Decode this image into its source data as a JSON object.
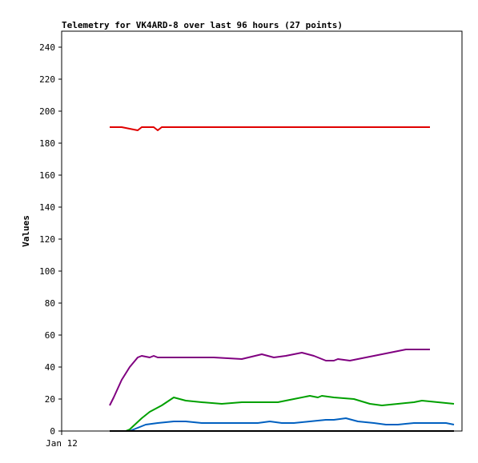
{
  "chart_data": {
    "type": "line",
    "title": "Telemetry for VK4ARD-8 over last 96 hours (27 points)",
    "ylabel": "Values",
    "xlabel": "",
    "ylim": [
      0,
      250
    ],
    "yticks": [
      0,
      20,
      40,
      60,
      80,
      100,
      120,
      140,
      160,
      180,
      200,
      220,
      240
    ],
    "xlim": [
      0,
      1
    ],
    "xtick_labels": [
      {
        "label": "Jan 12",
        "x": 0
      }
    ],
    "grid": false,
    "legend": "none",
    "series": [
      {
        "color": "#e00000",
        "points": [
          [
            0.12,
            190
          ],
          [
            0.15,
            190
          ],
          [
            0.17,
            189
          ],
          [
            0.19,
            188
          ],
          [
            0.2,
            190
          ],
          [
            0.23,
            190
          ],
          [
            0.24,
            188
          ],
          [
            0.25,
            190
          ],
          [
            0.28,
            190
          ],
          [
            0.4,
            190
          ],
          [
            0.6,
            190
          ],
          [
            0.8,
            190
          ],
          [
            0.92,
            190
          ]
        ]
      },
      {
        "color": "#800080",
        "points": [
          [
            0.12,
            16
          ],
          [
            0.13,
            21
          ],
          [
            0.15,
            32
          ],
          [
            0.17,
            40
          ],
          [
            0.19,
            46
          ],
          [
            0.2,
            47
          ],
          [
            0.22,
            46
          ],
          [
            0.23,
            47
          ],
          [
            0.24,
            46
          ],
          [
            0.3,
            46
          ],
          [
            0.38,
            46
          ],
          [
            0.45,
            45
          ],
          [
            0.5,
            48
          ],
          [
            0.53,
            46
          ],
          [
            0.56,
            47
          ],
          [
            0.6,
            49
          ],
          [
            0.63,
            47
          ],
          [
            0.66,
            44
          ],
          [
            0.68,
            44
          ],
          [
            0.69,
            45
          ],
          [
            0.72,
            44
          ],
          [
            0.78,
            47
          ],
          [
            0.84,
            50
          ],
          [
            0.86,
            51
          ],
          [
            0.88,
            51
          ],
          [
            0.9,
            51
          ],
          [
            0.92,
            51
          ]
        ]
      },
      {
        "color": "#00a000",
        "points": [
          [
            0.12,
            0
          ],
          [
            0.14,
            0
          ],
          [
            0.16,
            0
          ],
          [
            0.17,
            1
          ],
          [
            0.2,
            8
          ],
          [
            0.22,
            12
          ],
          [
            0.25,
            16
          ],
          [
            0.28,
            21
          ],
          [
            0.31,
            19
          ],
          [
            0.35,
            18
          ],
          [
            0.4,
            17
          ],
          [
            0.45,
            18
          ],
          [
            0.5,
            18
          ],
          [
            0.54,
            18
          ],
          [
            0.58,
            20
          ],
          [
            0.62,
            22
          ],
          [
            0.64,
            21
          ],
          [
            0.65,
            22
          ],
          [
            0.68,
            21
          ],
          [
            0.73,
            20
          ],
          [
            0.77,
            17
          ],
          [
            0.8,
            16
          ],
          [
            0.84,
            17
          ],
          [
            0.88,
            18
          ],
          [
            0.9,
            19
          ],
          [
            0.94,
            18
          ],
          [
            0.98,
            17
          ]
        ]
      },
      {
        "color": "#0060c0",
        "points": [
          [
            0.12,
            0
          ],
          [
            0.14,
            0
          ],
          [
            0.17,
            0
          ],
          [
            0.19,
            2
          ],
          [
            0.21,
            4
          ],
          [
            0.24,
            5
          ],
          [
            0.28,
            6
          ],
          [
            0.31,
            6
          ],
          [
            0.35,
            5
          ],
          [
            0.4,
            5
          ],
          [
            0.45,
            5
          ],
          [
            0.49,
            5
          ],
          [
            0.52,
            6
          ],
          [
            0.55,
            5
          ],
          [
            0.58,
            5
          ],
          [
            0.62,
            6
          ],
          [
            0.66,
            7
          ],
          [
            0.68,
            7
          ],
          [
            0.71,
            8
          ],
          [
            0.74,
            6
          ],
          [
            0.78,
            5
          ],
          [
            0.81,
            4
          ],
          [
            0.84,
            4
          ],
          [
            0.88,
            5
          ],
          [
            0.92,
            5
          ],
          [
            0.96,
            5
          ],
          [
            0.98,
            4
          ]
        ]
      },
      {
        "color": "#000000",
        "points": [
          [
            0.12,
            0
          ],
          [
            0.98,
            0
          ]
        ]
      }
    ]
  }
}
